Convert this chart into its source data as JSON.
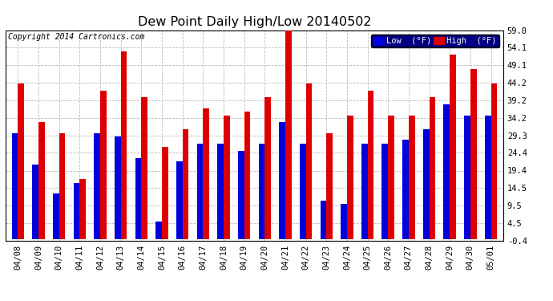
{
  "title": "Dew Point Daily High/Low 20140502",
  "copyright": "Copyright 2014 Cartronics.com",
  "legend_low": "Low  (°F)",
  "legend_high": "High  (°F)",
  "dates": [
    "04/08",
    "04/09",
    "04/10",
    "04/11",
    "04/12",
    "04/13",
    "04/14",
    "04/15",
    "04/16",
    "04/17",
    "04/18",
    "04/19",
    "04/20",
    "04/21",
    "04/22",
    "04/23",
    "04/24",
    "04/25",
    "04/26",
    "04/27",
    "04/28",
    "04/29",
    "04/30",
    "05/01"
  ],
  "low": [
    30,
    21,
    13,
    16,
    30,
    29,
    23,
    5,
    22,
    27,
    27,
    25,
    27,
    33,
    27,
    11,
    10,
    27,
    27,
    28,
    31,
    38,
    35,
    35
  ],
  "high": [
    44,
    33,
    30,
    17,
    42,
    53,
    40,
    26,
    31,
    37,
    35,
    36,
    40,
    59,
    44,
    30,
    35,
    42,
    35,
    35,
    40,
    52,
    48,
    44
  ],
  "ylim_min": -0.4,
  "ylim_max": 59.0,
  "yticks": [
    -0.4,
    4.5,
    9.5,
    14.5,
    19.4,
    24.4,
    29.3,
    34.2,
    39.2,
    44.2,
    49.1,
    54.1,
    59.0
  ],
  "bar_width": 0.3,
  "low_color": "#0000dd",
  "high_color": "#dd0000",
  "bg_color": "#ffffff",
  "grid_color": "#bbbbbb",
  "title_fontsize": 11.5,
  "tick_fontsize": 7.5,
  "legend_bg": "#000080"
}
